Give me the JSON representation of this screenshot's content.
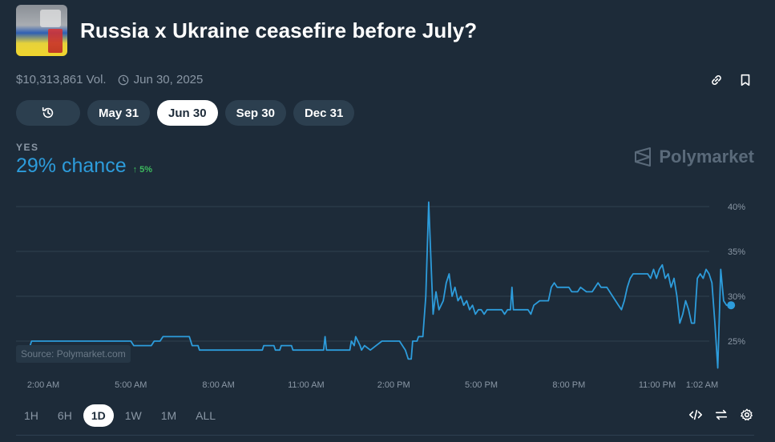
{
  "header": {
    "title": "Russia x Ukraine ceasefire before July?"
  },
  "meta": {
    "volume": "$10,313,861 Vol.",
    "date": "Jun 30, 2025"
  },
  "tabs": [
    {
      "label": "May 31",
      "active": false
    },
    {
      "label": "Jun 30",
      "active": true
    },
    {
      "label": "Sep 30",
      "active": false
    },
    {
      "label": "Dec 31",
      "active": false
    }
  ],
  "outcome": {
    "label": "YES",
    "chance": "29% chance",
    "delta": "5%"
  },
  "brand": "Polymarket",
  "source": "Source: Polymarket.com",
  "ranges": [
    {
      "label": "1H",
      "active": false
    },
    {
      "label": "6H",
      "active": false
    },
    {
      "label": "1D",
      "active": true
    },
    {
      "label": "1W",
      "active": false
    },
    {
      "label": "1M",
      "active": false
    },
    {
      "label": "ALL",
      "active": false
    }
  ],
  "colors": {
    "background": "#1d2b39",
    "line": "#2d9cdb",
    "positive": "#3dbb5e"
  },
  "chart_data": {
    "type": "line",
    "x_ticks": [
      "2:00 AM",
      "5:00 AM",
      "8:00 AM",
      "11:00 AM",
      "2:00 PM",
      "5:00 PM",
      "8:00 PM",
      "11:00 PM",
      "1:02 AM"
    ],
    "y_ticks": [
      "25%",
      "30%",
      "35%",
      "40%"
    ],
    "ylim": [
      20,
      42
    ],
    "grid": true,
    "series": [
      {
        "values": [
          {
            "t": 1.55,
            "y": 24.5
          },
          {
            "t": 1.6,
            "y": 25
          },
          {
            "t": 2.0,
            "y": 25
          },
          {
            "t": 4.5,
            "y": 25
          },
          {
            "t": 5.0,
            "y": 25
          },
          {
            "t": 5.1,
            "y": 24.5
          },
          {
            "t": 5.7,
            "y": 24.5
          },
          {
            "t": 5.8,
            "y": 25
          },
          {
            "t": 6.0,
            "y": 25
          },
          {
            "t": 6.1,
            "y": 25.5
          },
          {
            "t": 7.0,
            "y": 25.5
          },
          {
            "t": 7.1,
            "y": 24.5
          },
          {
            "t": 7.3,
            "y": 24.5
          },
          {
            "t": 7.35,
            "y": 24
          },
          {
            "t": 9.5,
            "y": 24
          },
          {
            "t": 9.55,
            "y": 24.5
          },
          {
            "t": 9.9,
            "y": 24.5
          },
          {
            "t": 9.95,
            "y": 24
          },
          {
            "t": 10.1,
            "y": 24
          },
          {
            "t": 10.15,
            "y": 24.5
          },
          {
            "t": 10.5,
            "y": 24.5
          },
          {
            "t": 10.55,
            "y": 24
          },
          {
            "t": 11.6,
            "y": 24
          },
          {
            "t": 11.65,
            "y": 25.5
          },
          {
            "t": 11.7,
            "y": 24
          },
          {
            "t": 12.5,
            "y": 24
          },
          {
            "t": 12.55,
            "y": 25
          },
          {
            "t": 12.65,
            "y": 24.5
          },
          {
            "t": 12.7,
            "y": 25.5
          },
          {
            "t": 12.85,
            "y": 24.5
          },
          {
            "t": 12.9,
            "y": 24
          },
          {
            "t": 13.0,
            "y": 24.5
          },
          {
            "t": 13.2,
            "y": 24
          },
          {
            "t": 13.4,
            "y": 24.5
          },
          {
            "t": 13.6,
            "y": 25
          },
          {
            "t": 14.2,
            "y": 25
          },
          {
            "t": 14.4,
            "y": 24
          },
          {
            "t": 14.5,
            "y": 23
          },
          {
            "t": 14.6,
            "y": 23
          },
          {
            "t": 14.65,
            "y": 25
          },
          {
            "t": 14.8,
            "y": 25
          },
          {
            "t": 14.85,
            "y": 25.5
          },
          {
            "t": 15.0,
            "y": 25.5
          },
          {
            "t": 15.1,
            "y": 30
          },
          {
            "t": 15.2,
            "y": 40.5
          },
          {
            "t": 15.3,
            "y": 32
          },
          {
            "t": 15.35,
            "y": 28
          },
          {
            "t": 15.45,
            "y": 30.5
          },
          {
            "t": 15.55,
            "y": 28.5
          },
          {
            "t": 15.7,
            "y": 29.5
          },
          {
            "t": 15.8,
            "y": 31.5
          },
          {
            "t": 15.9,
            "y": 32.5
          },
          {
            "t": 16.0,
            "y": 30
          },
          {
            "t": 16.1,
            "y": 31
          },
          {
            "t": 16.2,
            "y": 29.5
          },
          {
            "t": 16.3,
            "y": 30
          },
          {
            "t": 16.4,
            "y": 29
          },
          {
            "t": 16.5,
            "y": 29.5
          },
          {
            "t": 16.6,
            "y": 28.5
          },
          {
            "t": 16.7,
            "y": 29
          },
          {
            "t": 16.8,
            "y": 28
          },
          {
            "t": 16.9,
            "y": 28.5
          },
          {
            "t": 17.0,
            "y": 28.5
          },
          {
            "t": 17.1,
            "y": 28
          },
          {
            "t": 17.2,
            "y": 28.5
          },
          {
            "t": 17.7,
            "y": 28.5
          },
          {
            "t": 17.8,
            "y": 28
          },
          {
            "t": 17.9,
            "y": 28.5
          },
          {
            "t": 18.0,
            "y": 28.5
          },
          {
            "t": 18.05,
            "y": 31
          },
          {
            "t": 18.1,
            "y": 28.5
          },
          {
            "t": 18.6,
            "y": 28.5
          },
          {
            "t": 18.7,
            "y": 28
          },
          {
            "t": 18.8,
            "y": 29
          },
          {
            "t": 19.0,
            "y": 29.5
          },
          {
            "t": 19.3,
            "y": 29.5
          },
          {
            "t": 19.4,
            "y": 31
          },
          {
            "t": 19.5,
            "y": 31.5
          },
          {
            "t": 19.6,
            "y": 31
          },
          {
            "t": 20.0,
            "y": 31
          },
          {
            "t": 20.1,
            "y": 30.5
          },
          {
            "t": 20.3,
            "y": 30.5
          },
          {
            "t": 20.4,
            "y": 31
          },
          {
            "t": 20.6,
            "y": 30.5
          },
          {
            "t": 20.8,
            "y": 30.5
          },
          {
            "t": 20.9,
            "y": 31
          },
          {
            "t": 21.0,
            "y": 31.5
          },
          {
            "t": 21.1,
            "y": 31
          },
          {
            "t": 21.3,
            "y": 31
          },
          {
            "t": 21.4,
            "y": 30.5
          },
          {
            "t": 21.5,
            "y": 30
          },
          {
            "t": 21.7,
            "y": 29
          },
          {
            "t": 21.8,
            "y": 28.5
          },
          {
            "t": 21.9,
            "y": 29.5
          },
          {
            "t": 22.0,
            "y": 31
          },
          {
            "t": 22.1,
            "y": 32
          },
          {
            "t": 22.2,
            "y": 32.5
          },
          {
            "t": 22.7,
            "y": 32.5
          },
          {
            "t": 22.8,
            "y": 32
          },
          {
            "t": 22.9,
            "y": 33
          },
          {
            "t": 23.0,
            "y": 32
          },
          {
            "t": 23.1,
            "y": 33
          },
          {
            "t": 23.2,
            "y": 33.5
          },
          {
            "t": 23.3,
            "y": 32
          },
          {
            "t": 23.4,
            "y": 32.5
          },
          {
            "t": 23.5,
            "y": 31
          },
          {
            "t": 23.6,
            "y": 32
          },
          {
            "t": 23.7,
            "y": 30
          },
          {
            "t": 23.8,
            "y": 27
          },
          {
            "t": 23.9,
            "y": 28
          },
          {
            "t": 24.0,
            "y": 29.5
          },
          {
            "t": 24.1,
            "y": 28.5
          },
          {
            "t": 24.2,
            "y": 27
          },
          {
            "t": 24.3,
            "y": 27
          },
          {
            "t": 24.4,
            "y": 32
          },
          {
            "t": 24.5,
            "y": 32.5
          },
          {
            "t": 24.6,
            "y": 32
          },
          {
            "t": 24.7,
            "y": 33
          },
          {
            "t": 24.8,
            "y": 32.5
          },
          {
            "t": 24.9,
            "y": 31.5
          },
          {
            "t": 25.0,
            "y": 27
          },
          {
            "t": 25.1,
            "y": 22
          },
          {
            "t": 25.2,
            "y": 33
          },
          {
            "t": 25.3,
            "y": 29.5
          },
          {
            "t": 25.4,
            "y": 29
          },
          {
            "t": 25.5,
            "y": 29
          }
        ]
      }
    ]
  }
}
